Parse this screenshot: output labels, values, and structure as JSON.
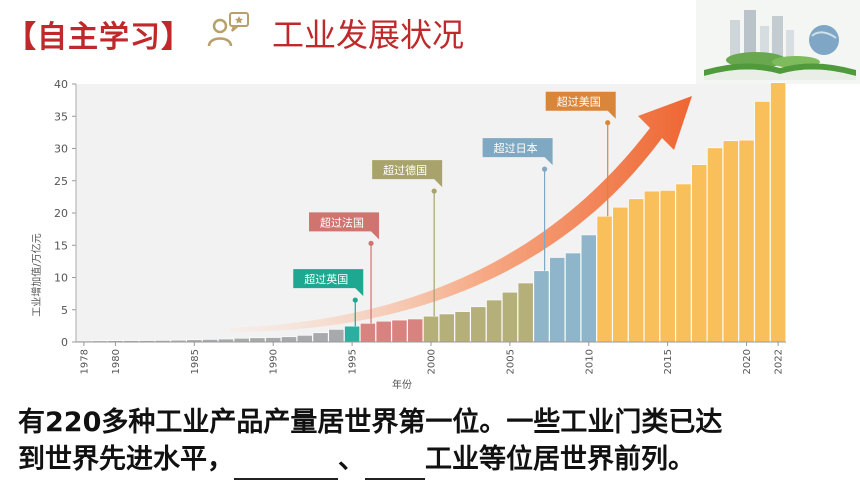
{
  "header": {
    "tag": "【自主学习】",
    "title": "工业发展状况"
  },
  "body_text": {
    "prefix": "有",
    "number": "220",
    "line1_rest": "多种工业产品产量居世界第一位。一些工业门类已达",
    "line2_a": "到世界先进水平，",
    "line2_sep": "、",
    "line2_b": "工业等位居世界前列。"
  },
  "chart_data": {
    "type": "bar",
    "ylabel": "工业增加值/万亿元",
    "xlabel": "年份",
    "ylim": [
      0,
      40
    ],
    "yticks": [
      0,
      5,
      10,
      15,
      20,
      25,
      30,
      35,
      40
    ],
    "xticks": [
      1978,
      1980,
      1985,
      1990,
      1995,
      2000,
      2005,
      2010,
      2015,
      2020,
      2022
    ],
    "years": [
      1978,
      1979,
      1980,
      1981,
      1982,
      1983,
      1984,
      1985,
      1986,
      1987,
      1988,
      1989,
      1990,
      1991,
      1992,
      1993,
      1994,
      1995,
      1996,
      1997,
      1998,
      1999,
      2000,
      2001,
      2002,
      2003,
      2004,
      2005,
      2006,
      2007,
      2008,
      2009,
      2010,
      2011,
      2012,
      2013,
      2014,
      2015,
      2016,
      2017,
      2018,
      2019,
      2020,
      2021,
      2022
    ],
    "values": [
      0.16,
      0.18,
      0.2,
      0.21,
      0.22,
      0.24,
      0.28,
      0.34,
      0.39,
      0.46,
      0.58,
      0.65,
      0.69,
      0.81,
      1.03,
      1.43,
      1.95,
      2.46,
      2.9,
      3.22,
      3.4,
      3.57,
      4.0,
      4.35,
      4.71,
      5.46,
      6.51,
      7.72,
      9.15,
      11.04,
      13.1,
      13.8,
      16.6,
      19.5,
      20.9,
      22.2,
      23.4,
      23.5,
      24.5,
      27.5,
      30.1,
      31.2,
      31.3,
      37.3,
      40.2
    ],
    "segment_colors": [
      {
        "from": 1978,
        "to": 1994,
        "color": "#a7a9ac"
      },
      {
        "from": 1995,
        "to": 1995,
        "color": "#2ab0a0"
      },
      {
        "from": 1996,
        "to": 1999,
        "color": "#d98380"
      },
      {
        "from": 2000,
        "to": 2006,
        "color": "#b5b07a"
      },
      {
        "from": 2007,
        "to": 2010,
        "color": "#8fb5ca"
      },
      {
        "from": 2011,
        "to": 2022,
        "color": "#f9bf5a"
      }
    ],
    "annotations": [
      {
        "label": "超过英国",
        "year": 1995,
        "value": 6.5,
        "color": "#1fa891"
      },
      {
        "label": "超过法国",
        "year": 1996,
        "value": 15.3,
        "color": "#d07470"
      },
      {
        "label": "超过德国",
        "year": 2000,
        "value": 23.4,
        "color": "#a8a36a"
      },
      {
        "label": "超过日本",
        "year": 2007,
        "value": 26.8,
        "color": "#7fa9c2"
      },
      {
        "label": "超过美国",
        "year": 2011,
        "value": 34.0,
        "color": "#d9853a"
      }
    ]
  }
}
